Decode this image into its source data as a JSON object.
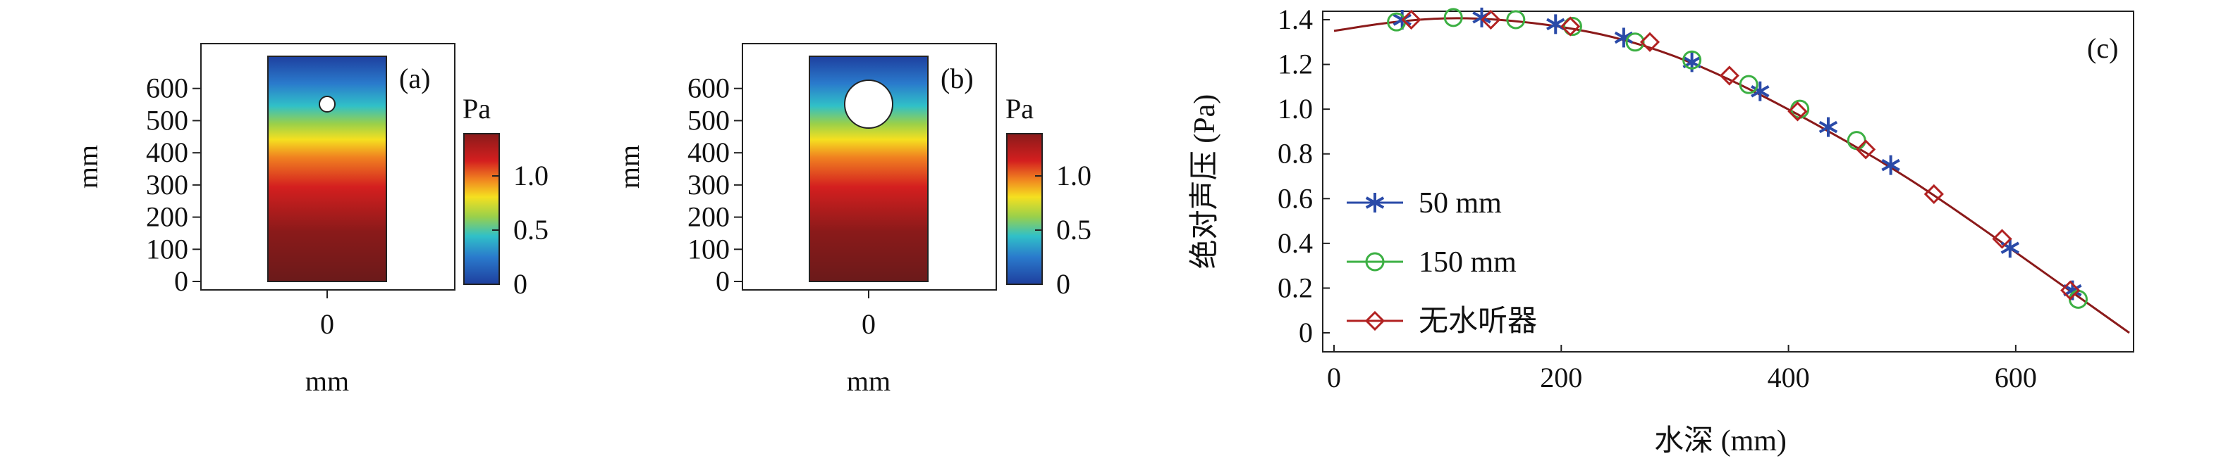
{
  "chart_data": [
    {
      "type": "heatmap",
      "panel_label": "(a)",
      "xlabel": "mm",
      "ylabel": "mm",
      "x_ticks": [
        "0"
      ],
      "y_ticks": [
        "0",
        "100",
        "200",
        "300",
        "400",
        "500",
        "600"
      ],
      "ylim": [
        0,
        700
      ],
      "hydrophone_diameter_mm": 50,
      "hydrophone_center_y_mm": 550,
      "colorbar": {
        "unit": "Pa",
        "ticks": [
          "0",
          "0.5",
          "1.0"
        ],
        "range": [
          0,
          1.4
        ]
      }
    },
    {
      "type": "heatmap",
      "panel_label": "(b)",
      "xlabel": "mm",
      "ylabel": "mm",
      "x_ticks": [
        "0"
      ],
      "y_ticks": [
        "0",
        "100",
        "200",
        "300",
        "400",
        "500",
        "600"
      ],
      "ylim": [
        0,
        700
      ],
      "hydrophone_diameter_mm": 150,
      "hydrophone_center_y_mm": 550,
      "colorbar": {
        "unit": "Pa",
        "ticks": [
          "0",
          "0.5",
          "1.0"
        ],
        "range": [
          0,
          1.4
        ]
      }
    },
    {
      "type": "line",
      "panel_label": "(c)",
      "xlabel": "水深 (mm)",
      "ylabel": "绝对声压 (Pa)",
      "xlim": [
        0,
        700
      ],
      "ylim": [
        0,
        1.45
      ],
      "x_ticks": [
        0,
        200,
        400,
        600
      ],
      "y_ticks": [
        0,
        0.2,
        0.4,
        0.6,
        0.8,
        1.0,
        1.2,
        1.4
      ],
      "legend_position": "bottom-left",
      "series": [
        {
          "name": "50 mm",
          "color": "#2a4aa8",
          "marker": "asterisk",
          "x": [
            60,
            130,
            195,
            255,
            315,
            375,
            435,
            490,
            595,
            650
          ],
          "y": [
            1.4,
            1.41,
            1.38,
            1.32,
            1.21,
            1.08,
            0.92,
            0.75,
            0.38,
            0.19
          ]
        },
        {
          "name": "150 mm",
          "color": "#3cb043",
          "marker": "circle",
          "x": [
            55,
            105,
            160,
            210,
            265,
            315,
            365,
            410,
            460,
            655
          ],
          "y": [
            1.39,
            1.41,
            1.4,
            1.37,
            1.3,
            1.22,
            1.11,
            1.0,
            0.86,
            0.15
          ]
        },
        {
          "name": "无水听器",
          "color": "#b22222",
          "marker": "diamond",
          "x": [
            68,
            138,
            208,
            278,
            348,
            408,
            468,
            528,
            588,
            648
          ],
          "y": [
            1.4,
            1.4,
            1.37,
            1.3,
            1.15,
            0.99,
            0.82,
            0.62,
            0.42,
            0.19
          ]
        }
      ],
      "curve": {
        "color": "#8b1a1a",
        "x": [
          0,
          50,
          100,
          150,
          200,
          250,
          300,
          350,
          400,
          450,
          500,
          550,
          600,
          650,
          700
        ],
        "y": [
          1.35,
          1.39,
          1.41,
          1.4,
          1.37,
          1.32,
          1.24,
          1.13,
          1.0,
          0.86,
          0.71,
          0.54,
          0.36,
          0.18,
          0.0
        ]
      }
    }
  ]
}
